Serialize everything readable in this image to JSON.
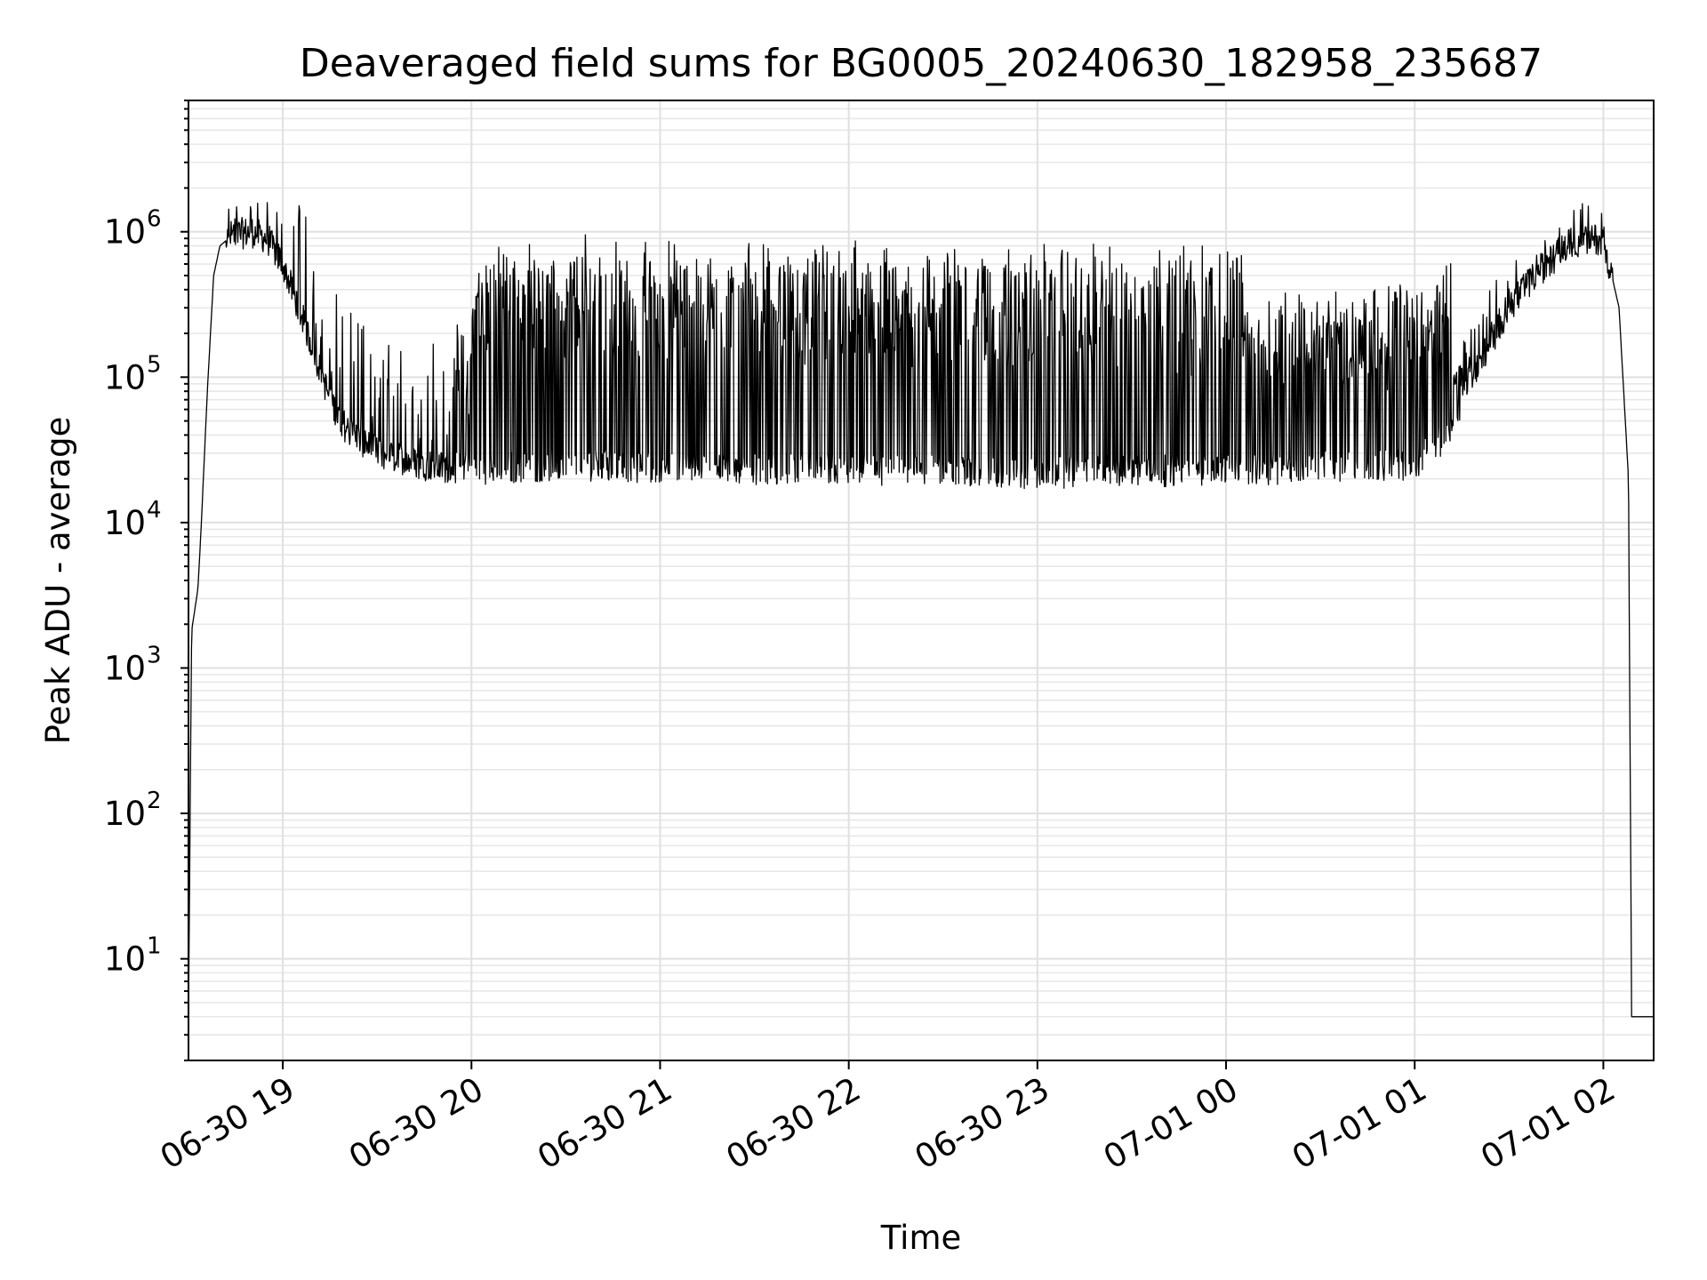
{
  "chart_data": {
    "type": "line",
    "title": "Deaveraged field sums for BG0005_20240630_182958_235687",
    "xlabel": "Time",
    "ylabel": "Peak ADU - average",
    "x_scale": "time",
    "y_scale": "log",
    "xlim": [
      "2024-06-30T18:30:00",
      "2024-07-01T02:16:00"
    ],
    "ylim": [
      2,
      8000000
    ],
    "x_ticks": [
      {
        "t": "2024-06-30T19:00:00",
        "label": "06-30 19"
      },
      {
        "t": "2024-06-30T20:00:00",
        "label": "06-30 20"
      },
      {
        "t": "2024-06-30T21:00:00",
        "label": "06-30 21"
      },
      {
        "t": "2024-06-30T22:00:00",
        "label": "06-30 22"
      },
      {
        "t": "2024-06-30T23:00:00",
        "label": "06-30 23"
      },
      {
        "t": "2024-07-01T00:00:00",
        "label": "07-01 00"
      },
      {
        "t": "2024-07-01T01:00:00",
        "label": "07-01 01"
      },
      {
        "t": "2024-07-01T02:00:00",
        "label": "07-01 02"
      }
    ],
    "y_ticks": [
      {
        "value": 10,
        "base": "10",
        "exp": "1"
      },
      {
        "value": 100,
        "base": "10",
        "exp": "2"
      },
      {
        "value": 1000,
        "base": "10",
        "exp": "3"
      },
      {
        "value": 10000,
        "base": "10",
        "exp": "4"
      },
      {
        "value": 100000,
        "base": "10",
        "exp": "5"
      },
      {
        "value": 1000000,
        "base": "10",
        "exp": "6"
      }
    ],
    "grid": true,
    "legend": "none",
    "line_color": "#000000",
    "series": [
      {
        "points": [
          [
            "2024-06-30T18:30:00",
            4
          ],
          [
            "2024-06-30T18:31:00",
            1800
          ],
          [
            "2024-06-30T18:33:00",
            3500
          ],
          [
            "2024-06-30T18:34:00",
            9000
          ],
          [
            "2024-06-30T18:36:00",
            80000
          ],
          [
            "2024-06-30T18:38:00",
            500000
          ],
          [
            "2024-06-30T18:40:00",
            800000
          ],
          [
            "2024-06-30T18:44:00",
            950000
          ],
          [
            "2024-06-30T18:50:00",
            1000000
          ],
          [
            "2024-06-30T18:55:00",
            900000
          ],
          [
            "2024-06-30T19:00:00",
            600000
          ],
          [
            "2024-06-30T19:05:00",
            300000
          ],
          [
            "2024-06-30T19:10:00",
            150000
          ],
          [
            "2024-06-30T19:15:00",
            70000
          ],
          [
            "2024-06-30T19:20:00",
            45000
          ],
          [
            "2024-06-30T19:30:00",
            30000
          ],
          [
            "2024-06-30T19:45:00",
            25000
          ],
          [
            "2024-06-30T20:00:00",
            23000
          ],
          [
            "2024-06-30T20:30:00",
            25000
          ],
          [
            "2024-06-30T21:00:00",
            24000
          ],
          [
            "2024-06-30T22:00:00",
            23000
          ],
          [
            "2024-06-30T23:00:00",
            22000
          ],
          [
            "2024-07-01T00:00:00",
            23000
          ],
          [
            "2024-07-01T00:30:00",
            24000
          ],
          [
            "2024-07-01T01:00:00",
            25000
          ],
          [
            "2024-07-01T01:10:00",
            40000
          ],
          [
            "2024-07-01T01:20:00",
            120000
          ],
          [
            "2024-07-01T01:30:00",
            300000
          ],
          [
            "2024-07-01T01:40:00",
            550000
          ],
          [
            "2024-07-01T01:50:00",
            850000
          ],
          [
            "2024-07-01T02:00:00",
            900000
          ],
          [
            "2024-07-01T02:05:00",
            300000
          ],
          [
            "2024-07-01T02:08:00",
            20000
          ],
          [
            "2024-07-01T02:09:00",
            4
          ],
          [
            "2024-07-01T02:16:00",
            4
          ]
        ]
      }
    ]
  }
}
